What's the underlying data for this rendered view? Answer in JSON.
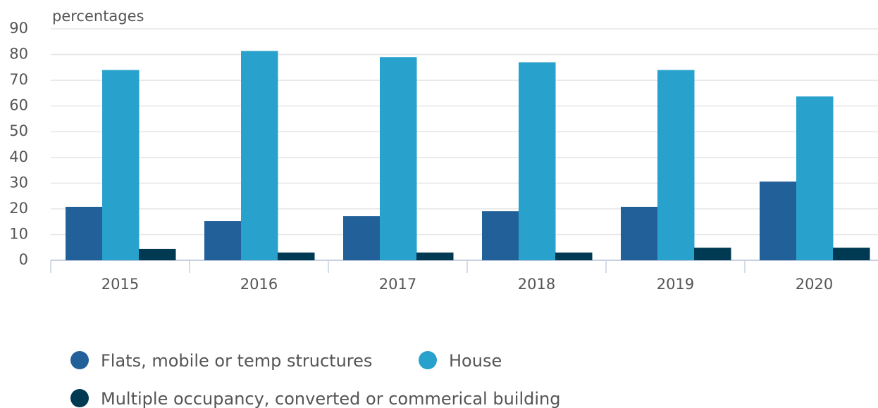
{
  "chart_data": {
    "type": "bar",
    "y_label": "percentages",
    "categories": [
      "2015",
      "2016",
      "2017",
      "2018",
      "2019",
      "2020"
    ],
    "series": [
      {
        "name": "Flats, mobile or temp structures",
        "color": "#22609a",
        "values": [
          20.8,
          15.3,
          17.2,
          19.1,
          20.8,
          30.6
        ]
      },
      {
        "name": "House",
        "color": "#28a1cc",
        "values": [
          74,
          81.4,
          79,
          77,
          74,
          63.7
        ]
      },
      {
        "name": "Multiple occupancy, converted or commerical building",
        "color": "#003a52",
        "values": [
          4.4,
          3,
          3,
          3,
          4.9,
          4.9
        ]
      }
    ],
    "ylim": [
      0,
      90
    ],
    "yticks": [
      0,
      10,
      20,
      30,
      40,
      50,
      60,
      70,
      80,
      90
    ],
    "grid": true
  }
}
